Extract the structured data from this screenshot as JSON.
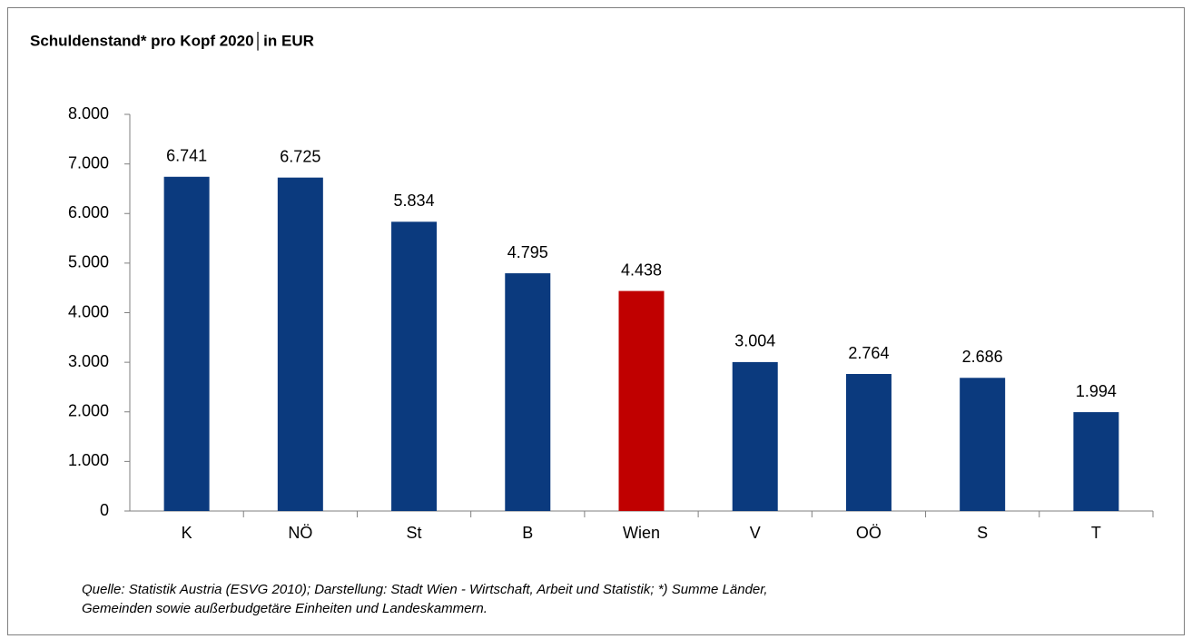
{
  "chart_data": {
    "type": "bar",
    "title": "Schuldenstand* pro Kopf 2020│in EUR",
    "categories": [
      "K",
      "NÖ",
      "St",
      "B",
      "Wien",
      "V",
      "OÖ",
      "S",
      "T"
    ],
    "values": [
      6741,
      6725,
      5834,
      4795,
      4438,
      3004,
      2764,
      2686,
      1994
    ],
    "value_labels": [
      "6.741",
      "6.725",
      "5.834",
      "4.795",
      "4.438",
      "3.004",
      "2.764",
      "2.686",
      "1.994"
    ],
    "colors": [
      "#0b3a7e",
      "#0b3a7e",
      "#0b3a7e",
      "#0b3a7e",
      "#c00000",
      "#0b3a7e",
      "#0b3a7e",
      "#0b3a7e",
      "#0b3a7e"
    ],
    "ylim": [
      0,
      8000
    ],
    "yticks": [
      0,
      {
        "value": 1000,
        "label": "1.000"
      },
      {
        "value": 2000,
        "label": "2.000"
      },
      {
        "value": 3000,
        "label": "3.000"
      },
      {
        "value": 4000,
        "label": "4.000"
      },
      {
        "value": 5000,
        "label": "5.000"
      },
      {
        "value": 6000,
        "label": "6.000"
      },
      {
        "value": 7000,
        "label": "7.000"
      },
      {
        "value": 8000,
        "label": "8.000"
      }
    ],
    "grid": false,
    "notes": [
      "Quelle: Statistik Austria (ESVG 2010); Darstellung: Stadt Wien - Wirtschaft, Arbeit und Statistik; *) Summe Länder,",
      "Gemeinden sowie außerbudgetäre Einheiten und Landeskammern."
    ]
  }
}
